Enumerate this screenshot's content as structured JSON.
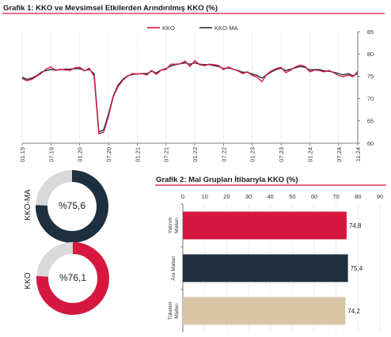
{
  "chart_data": [
    {
      "type": "line",
      "title": "Grafik 1: KKO ve Mevsimsel Etkilerden Arındırılmış KKO (%)",
      "legend": [
        "KKO",
        "KKO-MA"
      ],
      "legend_position": "top-right",
      "x_tick_labels": [
        "01.19",
        "07.19",
        "01.20",
        "07.20",
        "01.21",
        "07.21",
        "01.22",
        "07.22",
        "01.23",
        "07.23",
        "01.24",
        "07.24",
        "11.24"
      ],
      "x_tick_index": [
        0,
        6,
        12,
        18,
        24,
        30,
        36,
        42,
        48,
        54,
        60,
        66,
        70
      ],
      "ylim": [
        60,
        85
      ],
      "y_ticks": [
        60,
        65,
        70,
        75,
        80,
        85
      ],
      "grid": "vertical",
      "series": [
        {
          "name": "KKO",
          "color": "#d6173f",
          "values": [
            74.5,
            74.0,
            74.3,
            75.0,
            75.7,
            76.6,
            77.1,
            76.3,
            76.6,
            76.4,
            76.3,
            76.9,
            77.0,
            76.2,
            76.8,
            75.0,
            62.1,
            62.5,
            66.0,
            70.4,
            72.7,
            74.1,
            75.0,
            75.6,
            75.5,
            75.6,
            75.3,
            76.3,
            75.4,
            76.4,
            76.5,
            77.7,
            77.7,
            77.8,
            78.4,
            77.2,
            78.5,
            77.6,
            77.4,
            77.7,
            77.6,
            77.4,
            76.5,
            77.1,
            76.6,
            76.2,
            75.6,
            76.0,
            75.2,
            74.8,
            73.8,
            75.4,
            76.2,
            76.7,
            77.0,
            75.8,
            76.4,
            77.1,
            77.5,
            77.2,
            76.0,
            76.4,
            76.3,
            76.0,
            76.3,
            75.8,
            75.2,
            74.9,
            75.3,
            74.9,
            76.1
          ]
        },
        {
          "name": "KKO-MA",
          "color": "#1e3040",
          "values": [
            74.8,
            74.3,
            74.6,
            75.1,
            75.9,
            76.3,
            76.5,
            76.4,
            76.5,
            76.6,
            76.6,
            76.7,
            76.7,
            76.3,
            76.5,
            75.6,
            62.5,
            63.0,
            66.5,
            70.6,
            73.0,
            74.3,
            75.1,
            75.4,
            75.5,
            75.6,
            75.6,
            76.1,
            75.8,
            76.4,
            76.7,
            77.3,
            77.6,
            77.8,
            78.0,
            77.7,
            78.0,
            77.7,
            77.6,
            77.6,
            77.4,
            77.2,
            76.7,
            76.9,
            76.6,
            76.3,
            75.9,
            75.9,
            75.5,
            75.2,
            74.6,
            75.3,
            76.0,
            76.5,
            76.8,
            76.3,
            76.6,
            76.9,
            77.2,
            77.0,
            76.4,
            76.5,
            76.5,
            76.2,
            76.1,
            75.9,
            75.6,
            75.3,
            75.6,
            75.1,
            75.6
          ]
        }
      ]
    },
    {
      "type": "pie",
      "variant": "donut",
      "label": "KKO-MA",
      "value": 75.6,
      "display": "%75,6",
      "color": "#1e3040",
      "remainder_color": "#d9d9d9"
    },
    {
      "type": "pie",
      "variant": "donut",
      "label": "KKO",
      "value": 76.1,
      "display": "%76,1",
      "color": "#d6173f",
      "remainder_color": "#d9d9d9"
    },
    {
      "type": "bar",
      "orientation": "horizontal",
      "title": "Grafik 2: Mal Grupları İtibarıyla KKO (%)",
      "categories": [
        "Yatırım Malları",
        "Ara Malları",
        "Tüketim Malları"
      ],
      "category_lines": [
        [
          "Yatırım",
          "Malları"
        ],
        [
          "Ara Malları"
        ],
        [
          "Tüketim",
          "Malları"
        ]
      ],
      "values": [
        74.8,
        75.4,
        74.2
      ],
      "value_labels": [
        "74,8",
        "75,4",
        "74,2"
      ],
      "colors": [
        "#d6173f",
        "#1e3040",
        "#d9c5a3"
      ],
      "xlim": [
        0,
        90
      ],
      "x_ticks": [
        0,
        10,
        20,
        30,
        40,
        50,
        60,
        70,
        80,
        90
      ],
      "axis_position": "top"
    }
  ]
}
